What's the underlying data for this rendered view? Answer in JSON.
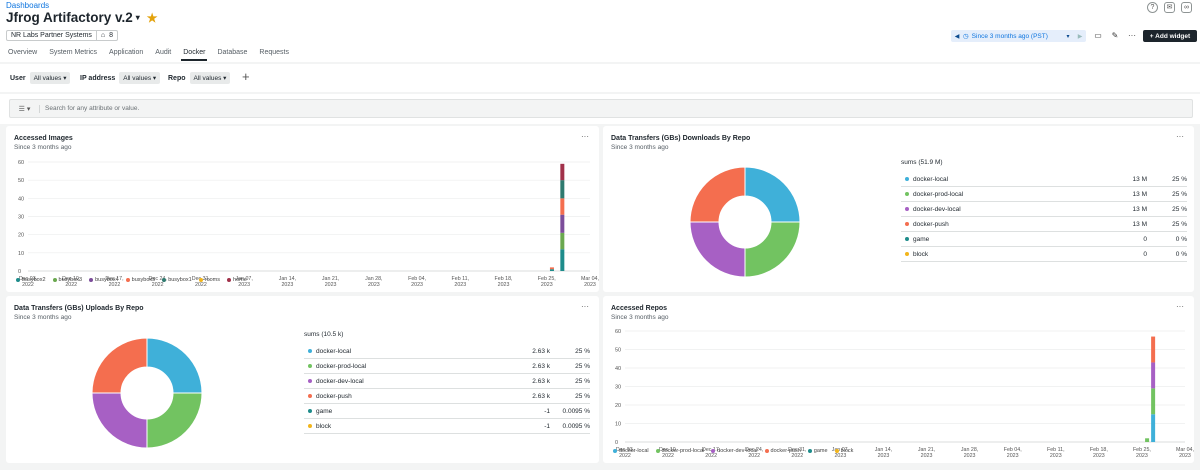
{
  "breadcrumb": "Dashboards",
  "title": "Jfrog Artifactory v.2",
  "account": {
    "name": "NR Labs Partner Systems",
    "tag_count": "8"
  },
  "tabs": [
    "Overview",
    "System Metrics",
    "Application",
    "Audit",
    "Docker",
    "Database",
    "Requests"
  ],
  "active_tab": "Docker",
  "time_picker": "Since 3 months ago (PST)",
  "add_widget": "+ Add widget",
  "filters": [
    {
      "label": "User",
      "value": "All values"
    },
    {
      "label": "IP address",
      "value": "All values"
    },
    {
      "label": "Repo",
      "value": "All values"
    }
  ],
  "search_placeholder": "Search for any attribute or value.",
  "colors": {
    "blue": "#3fb0d9",
    "green": "#72c361",
    "purple": "#a760c4",
    "red": "#f46e4f",
    "teal": "#1e8c8b",
    "yellow": "#f2b51b",
    "darkred": "#a1314a",
    "dteal": "#2f7a6f",
    "dgreen": "#6aa84f",
    "dpurple": "#7c4d9a",
    "dmag": "#9c3c6e"
  },
  "widgets": {
    "accessed_images": {
      "title": "Accessed Images",
      "subtitle": "Since 3 months ago",
      "legend": [
        "busybox2",
        "busybox3",
        "busybox4",
        "busybox5",
        "busybox1",
        "rooms",
        "home"
      ]
    },
    "downloads": {
      "title": "Data Transfers (GBs) Downloads By Repo",
      "subtitle": "Since 3 months ago",
      "sums": "sums (51.9 M)",
      "rows": [
        {
          "name": "docker-local",
          "value": "13 M",
          "pct": "25 %"
        },
        {
          "name": "docker-prod-local",
          "value": "13 M",
          "pct": "25 %"
        },
        {
          "name": "docker-dev-local",
          "value": "13 M",
          "pct": "25 %"
        },
        {
          "name": "docker-push",
          "value": "13 M",
          "pct": "25 %"
        },
        {
          "name": "game",
          "value": "0",
          "pct": "0 %"
        },
        {
          "name": "block",
          "value": "0",
          "pct": "0 %"
        }
      ]
    },
    "uploads": {
      "title": "Data Transfers (GBs) Uploads By Repo",
      "subtitle": "Since 3 months ago",
      "sums": "sums (10.5 k)",
      "rows": [
        {
          "name": "docker-local",
          "value": "2.63 k",
          "pct": "25 %"
        },
        {
          "name": "docker-prod-local",
          "value": "2.63 k",
          "pct": "25 %"
        },
        {
          "name": "docker-dev-local",
          "value": "2.63 k",
          "pct": "25 %"
        },
        {
          "name": "docker-push",
          "value": "2.63 k",
          "pct": "25 %"
        },
        {
          "name": "game",
          "value": "-1",
          "pct": "0.0095 %"
        },
        {
          "name": "block",
          "value": "-1",
          "pct": "0.0095 %"
        }
      ]
    },
    "accessed_repos": {
      "title": "Accessed Repos",
      "subtitle": "Since 3 months ago",
      "legend": [
        "docker-local",
        "docker-prod-local",
        "docker-dev-local",
        "docker-push",
        "game",
        "block"
      ]
    }
  },
  "chart_data": [
    {
      "type": "bar",
      "title": "Accessed Images",
      "x_ticks": [
        "Dec 03, 2022",
        "Dec 10, 2022",
        "Dec 17, 2022",
        "Dec 24, 2022",
        "Dec 31, 2022",
        "Jan 07, 2023",
        "Jan 14, 2023",
        "Jan 21, 2023",
        "Jan 28, 2023",
        "Feb 04, 2023",
        "Feb 11, 2023",
        "Feb 18, 2023",
        "Feb 25, 2023",
        "Mar 04, 2023"
      ],
      "ylim": [
        0,
        60
      ],
      "y_ticks": [
        0,
        10,
        20,
        30,
        40,
        50,
        60
      ],
      "stacked": true,
      "series": [
        {
          "name": "busybox2",
          "color": "#1e8c8b",
          "points": [
            {
              "x": "Feb 25, 2023",
              "y": 1
            },
            {
              "x": "Feb 28, 2023",
              "y": 12
            }
          ]
        },
        {
          "name": "busybox3",
          "color": "#6aa84f",
          "points": [
            {
              "x": "Feb 25, 2023",
              "y": 0
            },
            {
              "x": "Feb 28, 2023",
              "y": 9
            }
          ]
        },
        {
          "name": "busybox4",
          "color": "#7c4d9a",
          "points": [
            {
              "x": "Feb 25, 2023",
              "y": 0
            },
            {
              "x": "Feb 28, 2023",
              "y": 10
            }
          ]
        },
        {
          "name": "busybox5",
          "color": "#f46e4f",
          "points": [
            {
              "x": "Feb 25, 2023",
              "y": 1
            },
            {
              "x": "Feb 28, 2023",
              "y": 9
            }
          ]
        },
        {
          "name": "busybox1",
          "color": "#2f7a6f",
          "points": [
            {
              "x": "Feb 25, 2023",
              "y": 0
            },
            {
              "x": "Feb 28, 2023",
              "y": 10
            }
          ]
        },
        {
          "name": "rooms",
          "color": "#f2b51b",
          "points": [
            {
              "x": "Feb 25, 2023",
              "y": 0
            },
            {
              "x": "Feb 28, 2023",
              "y": 0
            }
          ]
        },
        {
          "name": "home",
          "color": "#a1314a",
          "points": [
            {
              "x": "Feb 25, 2023",
              "y": 0
            },
            {
              "x": "Feb 28, 2023",
              "y": 9
            }
          ]
        }
      ]
    },
    {
      "type": "pie",
      "title": "Data Transfers (GBs) Downloads By Repo",
      "donut": true,
      "slices": [
        {
          "name": "docker-local",
          "value": 13000000,
          "color": "#3fb0d9"
        },
        {
          "name": "docker-prod-local",
          "value": 13000000,
          "color": "#72c361"
        },
        {
          "name": "docker-dev-local",
          "value": 13000000,
          "color": "#a760c4"
        },
        {
          "name": "docker-push",
          "value": 13000000,
          "color": "#f46e4f"
        },
        {
          "name": "game",
          "value": 0,
          "color": "#1e8c8b"
        },
        {
          "name": "block",
          "value": 0,
          "color": "#f2b51b"
        }
      ]
    },
    {
      "type": "pie",
      "title": "Data Transfers (GBs) Uploads By Repo",
      "donut": true,
      "slices": [
        {
          "name": "docker-local",
          "value": 2630,
          "color": "#3fb0d9"
        },
        {
          "name": "docker-prod-local",
          "value": 2630,
          "color": "#72c361"
        },
        {
          "name": "docker-dev-local",
          "value": 2630,
          "color": "#a760c4"
        },
        {
          "name": "docker-push",
          "value": 2630,
          "color": "#f46e4f"
        },
        {
          "name": "game",
          "value": -1,
          "color": "#1e8c8b"
        },
        {
          "name": "block",
          "value": -1,
          "color": "#f2b51b"
        }
      ]
    },
    {
      "type": "bar",
      "title": "Accessed Repos",
      "x_ticks": [
        "Dec 03, 2022",
        "Dec 10, 2022",
        "Dec 17, 2022",
        "Dec 24, 2022",
        "Dec 31, 2022",
        "Jan 07, 2023",
        "Jan 14, 2023",
        "Jan 21, 2023",
        "Jan 28, 2023",
        "Feb 04, 2023",
        "Feb 11, 2023",
        "Feb 18, 2023",
        "Feb 25, 2023",
        "Mar 04, 2023"
      ],
      "ylim": [
        0,
        60
      ],
      "y_ticks": [
        0,
        10,
        20,
        30,
        40,
        50,
        60
      ],
      "stacked": true,
      "series": [
        {
          "name": "docker-local",
          "color": "#3fb0d9",
          "points": [
            {
              "x": "Feb 25, 2023",
              "y": 0
            },
            {
              "x": "Feb 28, 2023",
              "y": 15
            }
          ]
        },
        {
          "name": "docker-prod-local",
          "color": "#72c361",
          "points": [
            {
              "x": "Feb 25, 2023",
              "y": 2
            },
            {
              "x": "Feb 28, 2023",
              "y": 14
            }
          ]
        },
        {
          "name": "docker-dev-local",
          "color": "#a760c4",
          "points": [
            {
              "x": "Feb 25, 2023",
              "y": 0
            },
            {
              "x": "Feb 28, 2023",
              "y": 14
            }
          ]
        },
        {
          "name": "docker-push",
          "color": "#f46e4f",
          "points": [
            {
              "x": "Feb 25, 2023",
              "y": 0
            },
            {
              "x": "Feb 28, 2023",
              "y": 14
            }
          ]
        },
        {
          "name": "game",
          "color": "#1e8c8b",
          "points": [
            {
              "x": "Feb 25, 2023",
              "y": 0
            },
            {
              "x": "Feb 28, 2023",
              "y": 0
            }
          ]
        },
        {
          "name": "block",
          "color": "#f2b51b",
          "points": [
            {
              "x": "Feb 25, 2023",
              "y": 0
            },
            {
              "x": "Feb 28, 2023",
              "y": 0
            }
          ]
        }
      ]
    }
  ]
}
